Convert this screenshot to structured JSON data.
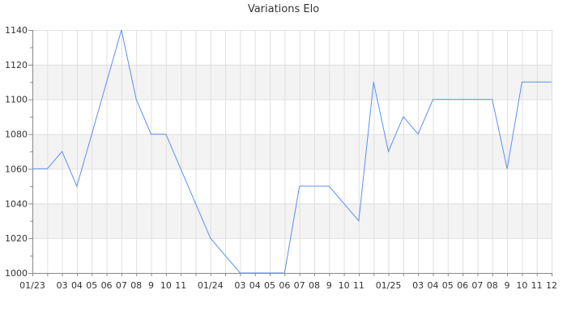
{
  "chart_data": {
    "type": "line",
    "title": "Variations Elo",
    "xlabel": "",
    "ylabel": "",
    "ylim": [
      1000,
      1140
    ],
    "y_ticks": [
      1000,
      1020,
      1040,
      1060,
      1080,
      1100,
      1120,
      1140
    ],
    "grid": true,
    "alternating_bands": true,
    "x": [
      "2023-01",
      "2023-02",
      "2023-03",
      "2023-04",
      "2023-05",
      "2023-06",
      "2023-07",
      "2023-08",
      "2023-09",
      "2023-10",
      "2023-11",
      "2023-12",
      "2024-01",
      "2024-02",
      "2024-03",
      "2024-04",
      "2024-05",
      "2024-06",
      "2024-07",
      "2024-08",
      "2024-09",
      "2024-10",
      "2024-11",
      "2024-12",
      "2025-01",
      "2025-02",
      "2025-03",
      "2025-04",
      "2025-05",
      "2025-06",
      "2025-07",
      "2025-08",
      "2025-09",
      "2025-10",
      "2025-11",
      "2025-12"
    ],
    "x_tick_labels": [
      "01/23",
      "",
      "03",
      "04",
      "05",
      "06",
      "07",
      "08",
      "9",
      "10",
      "11",
      "",
      "01/24",
      "",
      "03",
      "04",
      "05",
      "06",
      "07",
      "08",
      "9",
      "10",
      "11",
      "",
      "01/25",
      "",
      "03",
      "04",
      "05",
      "06",
      "07",
      "08",
      "9",
      "10",
      "11",
      "12"
    ],
    "series": [
      {
        "values": [
          1060,
          1060,
          1070,
          1050,
          1080,
          1110,
          1140,
          1100,
          1080,
          1080,
          1060,
          1040,
          1020,
          1010,
          1000,
          1000,
          1000,
          1000,
          1050,
          1050,
          1050,
          1040,
          1030,
          1110,
          1070,
          1090,
          1080,
          1100,
          1100,
          1100,
          1100,
          1100,
          1060,
          1110,
          1110,
          1110
        ],
        "color": "#5b8ff0"
      }
    ],
    "colors": {
      "band": "#f3f3f3",
      "grid": "#e0e0e0",
      "axis": "#888888"
    }
  }
}
